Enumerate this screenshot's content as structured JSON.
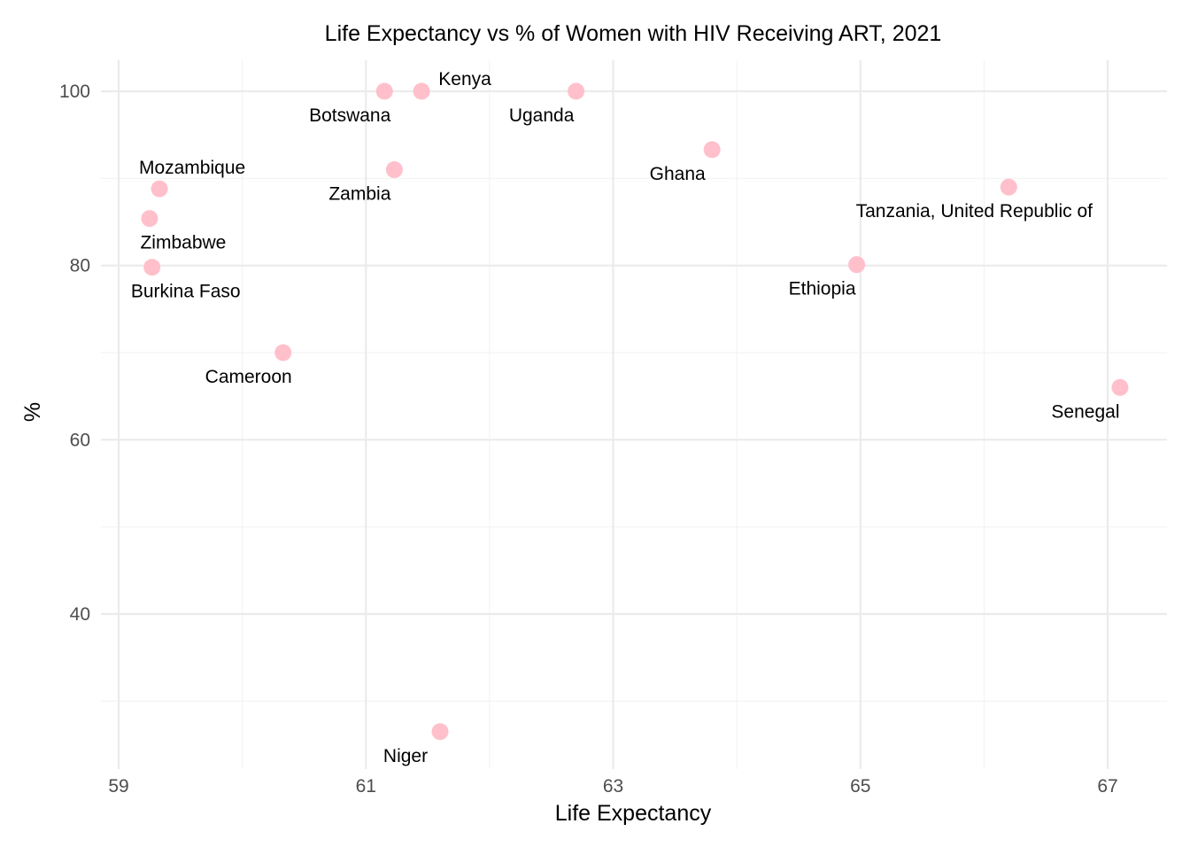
{
  "chart_data": {
    "type": "scatter",
    "title": "Life Expectancy vs % of Women with HIV Receiving ART, 2021",
    "xlabel": "Life Expectancy",
    "ylabel": "%",
    "xlim": [
      58.9,
      67.5
    ],
    "ylim": [
      23,
      103.5
    ],
    "xticks": [
      59,
      61,
      63,
      65,
      67
    ],
    "xtick_labels": [
      "59",
      "61",
      "63",
      "65",
      "67"
    ],
    "xminor": [
      60,
      62,
      64,
      66
    ],
    "yticks": [
      40,
      60,
      80,
      100
    ],
    "ytick_labels": [
      "40",
      "60",
      "80",
      "100"
    ],
    "yminor": [
      30,
      50,
      70,
      90
    ],
    "grid": true,
    "point_color": "#ffc0cb",
    "points": [
      {
        "label": "Botswana",
        "x": 61.15,
        "y": 100,
        "label_pos": "below-left"
      },
      {
        "label": "Kenya",
        "x": 61.45,
        "y": 100,
        "label_pos": "above-right"
      },
      {
        "label": "Uganda",
        "x": 62.7,
        "y": 100,
        "label_pos": "below-left"
      },
      {
        "label": "Ghana",
        "x": 63.8,
        "y": 93.3,
        "label_pos": "below-left"
      },
      {
        "label": "Zambia",
        "x": 61.23,
        "y": 91,
        "label_pos": "below-left"
      },
      {
        "label": "Mozambique",
        "x": 59.33,
        "y": 88.8,
        "label_pos": "above"
      },
      {
        "label": "Tanzania, United Republic of",
        "x": 66.2,
        "y": 89,
        "label_pos": "below-left"
      },
      {
        "label": "Zimbabwe",
        "x": 59.25,
        "y": 85.4,
        "label_pos": "below-right"
      },
      {
        "label": "Burkina Faso",
        "x": 59.27,
        "y": 79.8,
        "label_pos": "below-right"
      },
      {
        "label": "Ethiopia",
        "x": 64.97,
        "y": 80.1,
        "label_pos": "below-left"
      },
      {
        "label": "Cameroon",
        "x": 60.33,
        "y": 70,
        "label_pos": "below-left"
      },
      {
        "label": "Senegal",
        "x": 67.1,
        "y": 66,
        "label_pos": "below-left"
      },
      {
        "label": "Niger",
        "x": 61.6,
        "y": 26.5,
        "label_pos": "below-left"
      }
    ]
  }
}
